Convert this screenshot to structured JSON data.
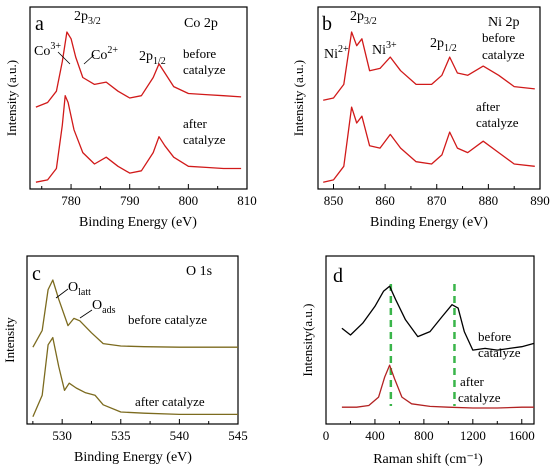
{
  "figure": {
    "panels": [
      {
        "id": "a",
        "panel_label": "a",
        "title": "Co 2p",
        "xlabel": "Binding Energy (eV)",
        "ylabel": "Intensity (a.u.)",
        "xlim": [
          773,
          810
        ],
        "xticks": [
          "780",
          "790",
          "800",
          "810"
        ],
        "xtick_values": [
          780,
          790,
          800,
          810
        ],
        "labels": {
          "p32_main": "2p",
          "p32_sub": "3/2",
          "p12_main": "2p",
          "p12_sub": "1/2",
          "co3_main": "Co",
          "co3_sup": "3+",
          "co2_main": "Co",
          "co2_sup": "2+",
          "before_1": "before",
          "before_2": "catalyze",
          "after_1": "after",
          "after_2": "catalyze"
        }
      },
      {
        "id": "b",
        "panel_label": "b",
        "title": "Ni 2p",
        "xlabel": "Binding Energy (eV)",
        "ylabel": "Intensity (a.u.)",
        "xlim": [
          847,
          890
        ],
        "xticks": [
          "850",
          "860",
          "870",
          "880",
          "890"
        ],
        "xtick_values": [
          850,
          860,
          870,
          880,
          890
        ],
        "labels": {
          "p32_main": "2p",
          "p32_sub": "3/2",
          "p12_main": "2p",
          "p12_sub": "1/2",
          "ni2_main": "Ni",
          "ni2_sup": "2+",
          "ni3_main": "Ni",
          "ni3_sup": "3+",
          "before_1": "before",
          "before_2": "catalyze",
          "after_1": "after",
          "after_2": "catalyze"
        }
      },
      {
        "id": "c",
        "panel_label": "c",
        "title": "O 1s",
        "xlabel": "Binding Energy (eV)",
        "ylabel": "Intensity",
        "xlim": [
          527,
          545
        ],
        "xticks": [
          "530",
          "535",
          "540",
          "545"
        ],
        "xtick_values": [
          530,
          535,
          540,
          545
        ],
        "labels": {
          "olatt_main": "O",
          "olatt_sub": "latt",
          "oads_main": "O",
          "oads_sub": "ads",
          "before": "before catalyze",
          "after": "after catalyze"
        }
      },
      {
        "id": "d",
        "panel_label": "d",
        "title": "",
        "xlabel": "Raman shift (cm⁻¹)",
        "ylabel": "Intensity(a.u.)",
        "xlim": [
          0,
          1700
        ],
        "xticks": [
          "0",
          "400",
          "800",
          "1200",
          "1600"
        ],
        "xtick_values": [
          0,
          400,
          800,
          1200,
          1600
        ],
        "labels": {
          "before_1": "before",
          "before_2": "catalyze",
          "after_1": "after",
          "after_2": "catalyze"
        }
      }
    ]
  },
  "chart_data": [
    {
      "type": "line",
      "title": "Co 2p",
      "xlabel": "Binding Energy (eV)",
      "ylabel": "Intensity (a.u.)",
      "xlim": [
        773,
        810
      ],
      "series": [
        {
          "x": [
            774,
            776,
            777.5,
            778.5,
            779.3,
            780.0,
            780.8,
            782,
            784,
            786,
            788,
            790,
            792,
            794,
            795.0,
            796,
            797.5,
            800,
            803,
            806,
            809
          ],
          "values": [
            3.6,
            3.8,
            4.3,
            5.6,
            6.9,
            6.6,
            5.8,
            4.9,
            4.6,
            4.7,
            4.3,
            4.0,
            4.1,
            4.9,
            5.5,
            5.1,
            4.5,
            4.2,
            4.15,
            4.1,
            4.05
          ]
        },
        {
          "x": [
            774,
            776,
            777.5,
            778.5,
            779.0,
            779.5,
            780.5,
            782,
            784,
            786,
            788,
            790,
            792,
            794,
            795.0,
            796,
            797.5,
            800,
            803,
            806,
            809
          ],
          "values": [
            0.3,
            0.4,
            0.9,
            2.8,
            4.1,
            3.8,
            2.6,
            1.6,
            1.1,
            1.4,
            1.0,
            0.7,
            0.8,
            1.6,
            2.3,
            1.9,
            1.4,
            1.0,
            0.95,
            0.9,
            0.9
          ]
        }
      ]
    },
    {
      "type": "line",
      "title": "Ni 2p",
      "xlabel": "Binding Energy (eV)",
      "ylabel": "Intensity (a.u.)",
      "xlim": [
        847,
        890
      ],
      "series": [
        {
          "x": [
            848,
            850,
            852,
            853.5,
            854.5,
            855.5,
            857,
            859,
            861,
            863,
            866,
            869,
            871,
            872.5,
            874,
            876,
            879,
            882,
            885,
            889
          ],
          "values": [
            3.9,
            4.0,
            4.6,
            6.9,
            6.3,
            6.6,
            5.2,
            5.3,
            5.8,
            5.2,
            4.6,
            4.6,
            5.0,
            5.8,
            5.1,
            5.0,
            5.4,
            5.0,
            4.5,
            4.4
          ]
        },
        {
          "x": [
            848,
            850,
            852,
            853.5,
            854.5,
            855.5,
            857,
            859,
            861,
            863,
            866,
            869,
            871,
            872.5,
            874,
            876,
            879,
            882,
            885,
            889
          ],
          "values": [
            0.3,
            0.4,
            1.0,
            3.6,
            2.9,
            3.2,
            1.9,
            1.8,
            2.4,
            1.8,
            1.2,
            1.1,
            1.5,
            2.5,
            1.8,
            1.6,
            2.1,
            1.6,
            1.1,
            1.0
          ]
        }
      ]
    },
    {
      "type": "line",
      "title": "O 1s",
      "xlabel": "Binding Energy (eV)",
      "ylabel": "Intensity",
      "xlim": [
        527,
        545
      ],
      "series": [
        {
          "x": [
            527.5,
            528.3,
            528.8,
            529.2,
            529.7,
            530.5,
            531.0,
            531.5,
            532.5,
            533.5,
            535,
            537,
            540,
            543,
            545
          ],
          "values": [
            3.2,
            3.9,
            5.6,
            6.0,
            5.2,
            4.1,
            4.4,
            4.3,
            3.8,
            3.35,
            3.25,
            3.22,
            3.2,
            3.2,
            3.2
          ]
        },
        {
          "x": [
            527.5,
            528.3,
            528.8,
            529.2,
            529.7,
            530.2,
            530.6,
            531.2,
            532.0,
            532.8,
            533.5,
            535,
            537,
            540,
            543,
            545
          ],
          "values": [
            0.3,
            1.2,
            3.3,
            3.6,
            2.4,
            1.4,
            1.7,
            1.5,
            1.3,
            1.2,
            0.8,
            0.5,
            0.45,
            0.4,
            0.4,
            0.4
          ]
        }
      ]
    },
    {
      "type": "line",
      "title": "",
      "xlabel": "Raman shift (cm⁻¹)",
      "ylabel": "Intensity(a.u.)",
      "xlim": [
        0,
        1700
      ],
      "series": [
        {
          "x": [
            130,
            200,
            300,
            400,
            470,
            520,
            570,
            650,
            750,
            850,
            950,
            1030,
            1080,
            1130,
            1200,
            1300,
            1400,
            1500,
            1600,
            1700
          ],
          "values": [
            5.7,
            5.3,
            6.0,
            7.0,
            7.9,
            8.2,
            7.4,
            6.2,
            5.2,
            5.5,
            6.4,
            7.1,
            6.9,
            5.5,
            4.4,
            4.5,
            4.4,
            4.5,
            4.6,
            4.8
          ]
        },
        {
          "x": [
            130,
            250,
            350,
            430,
            480,
            520,
            560,
            620,
            700,
            850,
            1000,
            1200,
            1400,
            1600,
            1700
          ],
          "values": [
            1.0,
            1.0,
            1.1,
            1.6,
            2.8,
            3.5,
            2.7,
            1.6,
            1.2,
            1.05,
            1.0,
            0.95,
            0.95,
            1.0,
            1.0
          ]
        }
      ],
      "dashed_lines_x": [
        530,
        1050
      ]
    }
  ]
}
